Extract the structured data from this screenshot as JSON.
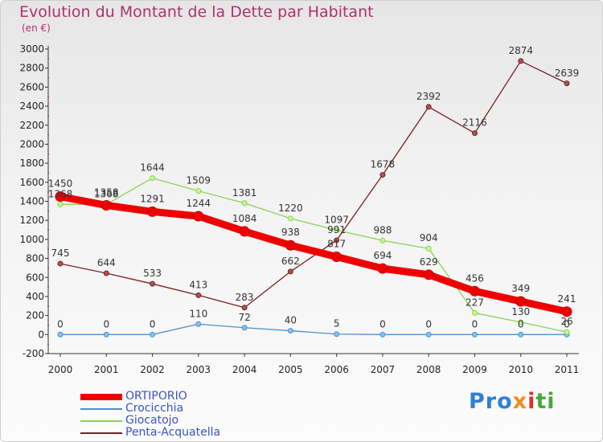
{
  "title": "Evolution du Montant de la Dette par Habitant",
  "subtitle": "(en €)",
  "logo": "Proxiti",
  "chart_data": {
    "type": "line",
    "title": "Evolution du Montant de la Dette par Habitant",
    "subtitle": "(en €)",
    "x": [
      2000,
      2001,
      2002,
      2003,
      2004,
      2005,
      2006,
      2007,
      2008,
      2009,
      2010,
      2011
    ],
    "ylim": [
      -200,
      3000
    ],
    "yticks": [
      -200,
      0,
      200,
      400,
      600,
      800,
      1000,
      1200,
      1400,
      1600,
      1800,
      2000,
      2200,
      2400,
      2600,
      2800,
      3000
    ],
    "grid": false,
    "legend_position": "bottom-left",
    "series": [
      {
        "name": "ORTIPORIO",
        "color": "#ee0000",
        "values": [
          1450,
          1358,
          1291,
          1244,
          1084,
          938,
          817,
          694,
          629,
          456,
          349,
          241
        ],
        "labels": [
          "1450",
          "1358",
          "1291",
          "1244",
          "1084",
          "938",
          "817",
          "694",
          "629",
          "456",
          "349",
          "241"
        ]
      },
      {
        "name": "Crocicchia",
        "color": "#4f90cc",
        "values": [
          0,
          0,
          0,
          110,
          72,
          40,
          5,
          0,
          0,
          0,
          0,
          0
        ],
        "labels": [
          "0",
          "0",
          "0",
          "110",
          "72",
          "40",
          "5",
          "0",
          "0",
          "0",
          "0",
          "0"
        ]
      },
      {
        "name": "Giocatojo",
        "color": "#8ed05a",
        "values": [
          1368,
          1368,
          1644,
          1509,
          1381,
          1220,
          1097,
          988,
          904,
          227,
          130,
          26
        ],
        "labels": [
          "1368",
          "1368",
          "1644",
          "1509",
          "1381",
          "1220",
          "1097",
          "988",
          "904",
          "227",
          "130",
          "26"
        ]
      },
      {
        "name": "Penta-Acquatella",
        "color": "#7a2020",
        "values": [
          745,
          644,
          533,
          413,
          283,
          662,
          991,
          1678,
          2392,
          2116,
          2874,
          2639
        ],
        "labels": [
          "745",
          "644",
          "533",
          "413",
          "283",
          "662",
          "991",
          "1678",
          "2392",
          "2116",
          "2874",
          "2639"
        ]
      }
    ]
  }
}
